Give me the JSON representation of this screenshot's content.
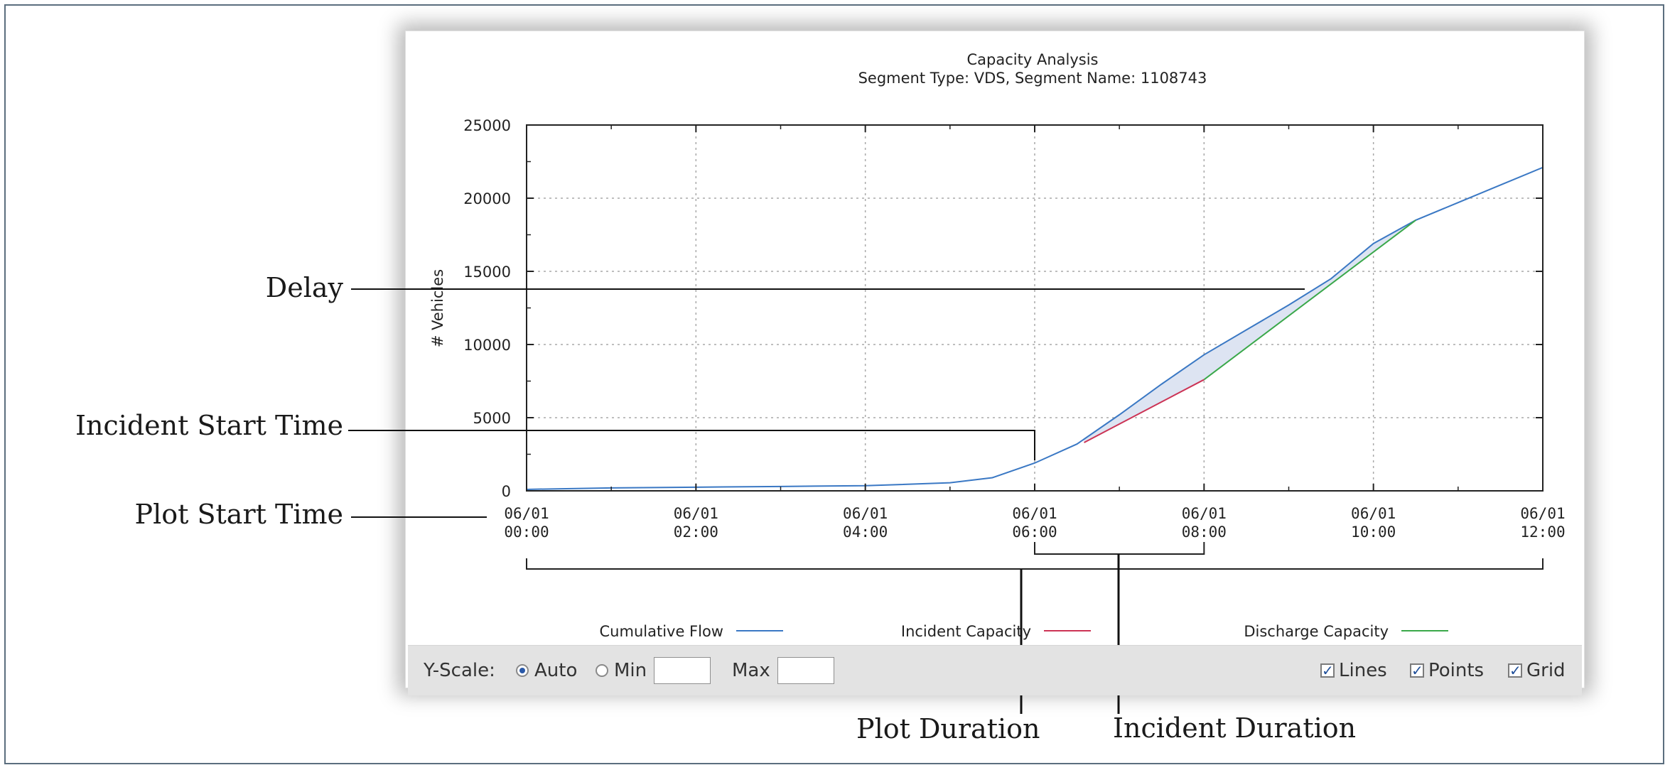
{
  "chart_data": {
    "type": "line",
    "title": "Capacity Analysis",
    "subtitle": "Segment Type: VDS, Segment Name: 1108743",
    "ylabel": "# Vehicles",
    "xlabel": "",
    "ylim": [
      0,
      25000
    ],
    "yticks": [
      "0",
      "5000",
      "10000",
      "15000",
      "20000",
      "25000"
    ],
    "xlim": [
      "06/01 00:00",
      "06/01 12:00"
    ],
    "xticks": [
      {
        "date": "06/01",
        "time": "00:00"
      },
      {
        "date": "06/01",
        "time": "02:00"
      },
      {
        "date": "06/01",
        "time": "04:00"
      },
      {
        "date": "06/01",
        "time": "06:00"
      },
      {
        "date": "06/01",
        "time": "08:00"
      },
      {
        "date": "06/01",
        "time": "10:00"
      },
      {
        "date": "06/01",
        "time": "12:00"
      }
    ],
    "grid": true,
    "legend_position": "bottom",
    "series": [
      {
        "name": "Cumulative Flow",
        "color": "#3a78c4",
        "points": [
          [
            "06/01 00:00",
            100
          ],
          [
            "06/01 01:00",
            200
          ],
          [
            "06/01 02:00",
            250
          ],
          [
            "06/01 03:00",
            300
          ],
          [
            "06/01 04:00",
            350
          ],
          [
            "06/01 05:00",
            550
          ],
          [
            "06/01 05:30",
            900
          ],
          [
            "06/01 06:00",
            1900
          ],
          [
            "06/01 06:30",
            3200
          ],
          [
            "06/01 07:00",
            5200
          ],
          [
            "06/01 07:30",
            7300
          ],
          [
            "06/01 08:00",
            9300
          ],
          [
            "06/01 08:30",
            11000
          ],
          [
            "06/01 09:00",
            12700
          ],
          [
            "06/01 09:30",
            14500
          ],
          [
            "06/01 10:00",
            16900
          ],
          [
            "06/01 10:30",
            18500
          ],
          [
            "06/01 11:00",
            19700
          ],
          [
            "06/01 11:30",
            20900
          ],
          [
            "06/01 12:00",
            22100
          ]
        ]
      },
      {
        "name": "Incident Capacity",
        "color": "#cc3355",
        "points": [
          [
            "06/01 06:35",
            3300
          ],
          [
            "06/01 08:00",
            7600
          ]
        ]
      },
      {
        "name": "Discharge Capacity",
        "color": "#3aa84a",
        "points": [
          [
            "06/01 08:00",
            7600
          ],
          [
            "06/01 10:30",
            18500
          ]
        ]
      }
    ],
    "shaded_region": {
      "label": "Delay",
      "fill": "#dde4f2",
      "between": [
        "Cumulative Flow",
        "Incident Capacity + Discharge Capacity"
      ]
    }
  },
  "controls": {
    "yscale_label": "Y-Scale:",
    "auto_label": "Auto",
    "auto_selected": true,
    "min_label": "Min",
    "min_value": "",
    "max_label": "Max",
    "max_value": "",
    "lines_label": "Lines",
    "lines_checked": true,
    "points_label": "Points",
    "points_checked": true,
    "grid_label": "Grid",
    "grid_checked": true
  },
  "callouts": {
    "delay": "Delay",
    "incident_start_time": "Incident Start Time",
    "plot_start_time": "Plot Start Time",
    "plot_duration": "Plot Duration",
    "incident_duration": "Incident Duration"
  }
}
